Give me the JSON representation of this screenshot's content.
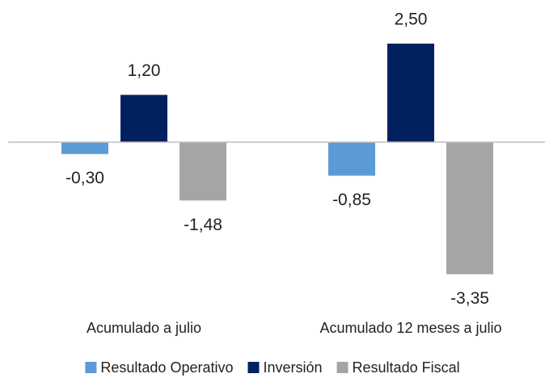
{
  "chart_data": {
    "type": "bar",
    "categories": [
      "Acumulado a julio",
      "Acumulado 12 meses a julio"
    ],
    "series": [
      {
        "name": "Resultado Operativo",
        "color": "#5b9bd5",
        "values": [
          -0.3,
          -0.85
        ],
        "value_labels": [
          "-0,30",
          "-0,85"
        ]
      },
      {
        "name": "Inversión",
        "color": "#002060",
        "values": [
          1.2,
          2.5
        ],
        "value_labels": [
          "1,20",
          "2,50"
        ]
      },
      {
        "name": "Resultado Fiscal",
        "color": "#a5a5a5",
        "values": [
          -1.48,
          -3.35
        ],
        "value_labels": [
          "-1,48",
          "-3,35"
        ]
      }
    ],
    "ylim": [
      -3.6,
      2.8
    ],
    "legend": "bottom"
  }
}
